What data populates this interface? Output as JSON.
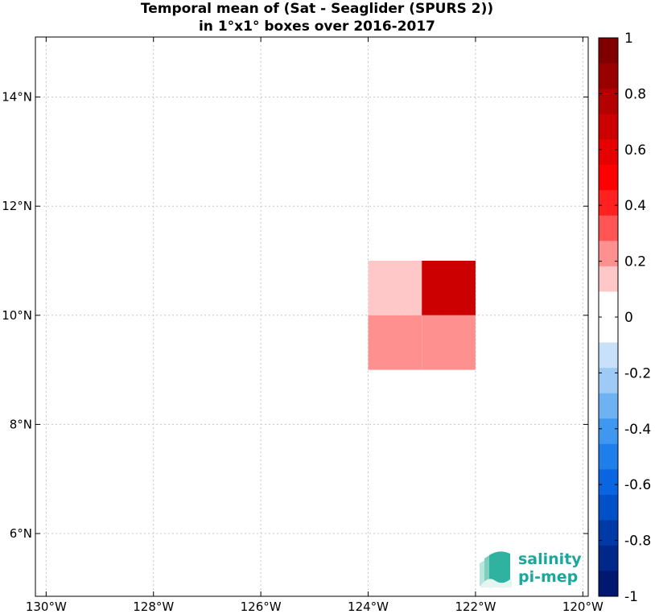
{
  "chart_data": {
    "type": "heatmap",
    "title": [
      "Temporal mean of (Sat - Seaglider (SPURS 2))",
      "in 1°x1° boxes over 2016-2017"
    ],
    "xlabel": "",
    "ylabel": "",
    "xlim": [
      -130.2,
      -119.9
    ],
    "ylim": [
      4.85,
      15.1
    ],
    "x_ticks": [
      {
        "value": -130,
        "label": "130°W"
      },
      {
        "value": -128,
        "label": "128°W"
      },
      {
        "value": -126,
        "label": "126°W"
      },
      {
        "value": -124,
        "label": "124°W"
      },
      {
        "value": -122,
        "label": "122°W"
      },
      {
        "value": -120,
        "label": "120°W"
      }
    ],
    "y_ticks": [
      {
        "value": 6,
        "label": "6°N"
      },
      {
        "value": 8,
        "label": "8°N"
      },
      {
        "value": 10,
        "label": "10°N"
      },
      {
        "value": 12,
        "label": "12°N"
      },
      {
        "value": 14,
        "label": "14°N"
      }
    ],
    "grid": true,
    "cells": [
      {
        "lon": [
          -124,
          -123
        ],
        "lat": [
          10,
          11
        ],
        "value": 0.15
      },
      {
        "lon": [
          -123,
          -122
        ],
        "lat": [
          10,
          11
        ],
        "value": 0.65
      },
      {
        "lon": [
          -124,
          -123
        ],
        "lat": [
          9,
          10
        ],
        "value": 0.25
      },
      {
        "lon": [
          -123,
          -122
        ],
        "lat": [
          9,
          10
        ],
        "value": 0.25
      }
    ],
    "colorbar": {
      "range": [
        -1,
        1
      ],
      "ticks": [
        1,
        0.8,
        0.6,
        0.4,
        0.2,
        0,
        -0.2,
        -0.4,
        -0.6,
        -0.8,
        -1
      ],
      "tick_labels": [
        "1",
        "0.8",
        "0.6",
        "0.4",
        "0.2",
        "0",
        "-0.2",
        "-0.4",
        "-0.6",
        "-0.8",
        "-1"
      ],
      "colors_top_to_bottom": [
        "#800000",
        "#990000",
        "#b30000",
        "#cc0000",
        "#e60000",
        "#ff0000",
        "#ff2020",
        "#ff5555",
        "#ff9090",
        "#ffc8c8",
        "#ffffff",
        "#ffffff",
        "#c8e0fa",
        "#9ecbf5",
        "#6eb2f2",
        "#3f98ef",
        "#1f7fea",
        "#0a66e0",
        "#0050c8",
        "#003aa6",
        "#00288a",
        "#001870"
      ]
    }
  },
  "logo": {
    "line1": "salinity",
    "line2": "pi-mep",
    "color": "#1aa89c"
  }
}
